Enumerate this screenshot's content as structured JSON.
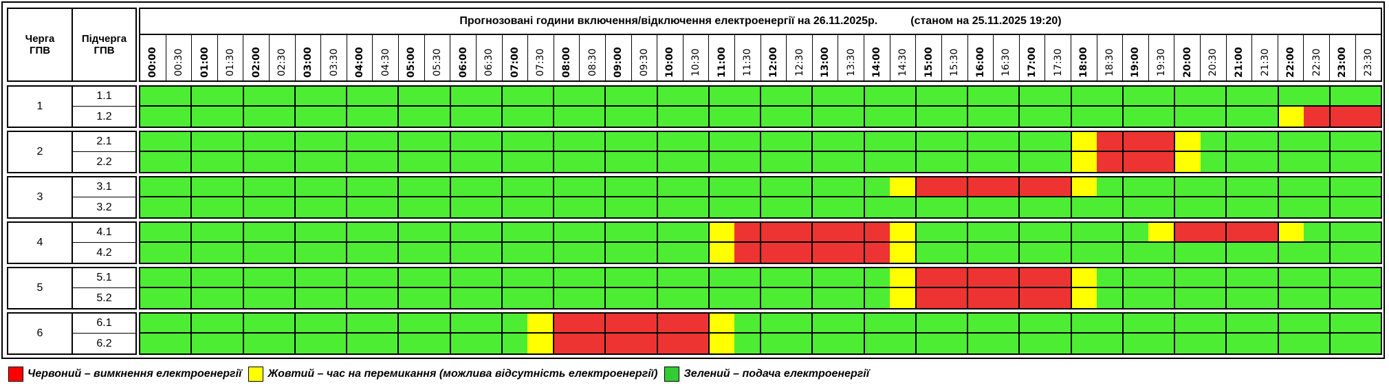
{
  "header": {
    "queue_label": "Черга ГПВ",
    "subqueue_label": "Підчерга ГПВ",
    "title": "Прогнозовані години включення/відключення електроенергії на 26.11.2025р.",
    "status": "(станом на 25.11.2025 19:20)",
    "times": [
      "00:00",
      "00:30",
      "01:00",
      "01:30",
      "02:00",
      "02:30",
      "03:00",
      "03:30",
      "04:00",
      "04:30",
      "05:00",
      "05:30",
      "06:00",
      "06:30",
      "07:00",
      "07:30",
      "08:00",
      "08:30",
      "09:00",
      "09:30",
      "10:00",
      "10:30",
      "11:00",
      "11:30",
      "12:00",
      "12:30",
      "13:00",
      "13:30",
      "14:00",
      "14:30",
      "15:00",
      "15:30",
      "16:00",
      "16:30",
      "17:00",
      "17:30",
      "18:00",
      "18:30",
      "19:00",
      "19:30",
      "20:00",
      "20:30",
      "21:00",
      "21:30",
      "22:00",
      "22:30",
      "23:00",
      "23:30"
    ]
  },
  "colors": {
    "G": "#4ded33",
    "R": "#ee3333",
    "Y": "#ffff00"
  },
  "queues": [
    {
      "label": "1",
      "subs": [
        {
          "label": "1.1",
          "slots": "GGGGGGGG GGGGGGGG GGGGGGGG GGGGGGGG GGGGGGGG GGGGGGGG"
        },
        {
          "label": "1.2",
          "slots": "GGGGGGGG GGGGGGGG GGGGGGGG GGGGGGGG GGGGGGGG GGGGYRRR"
        }
      ]
    },
    {
      "label": "2",
      "subs": [
        {
          "label": "2.1",
          "slots": "GGGGGGGG GGGGGGGG GGGGGGGG GGGGGGGG GGGGYRRR YGGGGGGG"
        },
        {
          "label": "2.2",
          "slots": "GGGGGGGG GGGGGGGG GGGGGGGG GGGGGGGG GGGGYRRR YGGGGGGG"
        }
      ]
    },
    {
      "label": "3",
      "subs": [
        {
          "label": "3.1",
          "slots": "GGGGGGGG GGGGGGGG GGGGGGGG GGGGGYRR RRRRYGGG GGGGGGGG"
        },
        {
          "label": "3.2",
          "slots": "GGGGGGGG GGGGGGGG GGGGGGGG GGGGGGGG GGGGGGGG GGGGGGGG"
        }
      ]
    },
    {
      "label": "4",
      "subs": [
        {
          "label": "4.1",
          "slots": "GGGGGGGG GGGGGGGG GGGGGGYR RRRRRYGG GGGGGGGY RRRRYGGG"
        },
        {
          "label": "4.2",
          "slots": "GGGGGGGG GGGGGGGG GGGGGGYR RRRRRYGG GGGGGGGG GGGGGGGG"
        }
      ]
    },
    {
      "label": "5",
      "subs": [
        {
          "label": "5.1",
          "slots": "GGGGGGGG GGGGGGGG GGGGGGGG GGGGGYRR RRRRYGGG GGGGGGGG"
        },
        {
          "label": "5.2",
          "slots": "GGGGGGGG GGGGGGGG GGGGGGGG GGGGGYRR RRRRYGGG GGGGGGGG"
        }
      ]
    },
    {
      "label": "6",
      "subs": [
        {
          "label": "6.1",
          "slots": "GGGGGGGG GGGGGGGY RRRRRRYG GGGGGGGG GGGGGGGG GGGGGGGG"
        },
        {
          "label": "6.2",
          "slots": "GGGGGGGG GGGGGGGY RRRRRRYG GGGGGGGG GGGGGGGG GGGGGGGG"
        }
      ]
    }
  ],
  "legend": [
    {
      "color": "#ff0000",
      "text": "Червоний – вимкнення електроенергії"
    },
    {
      "color": "#ffff00",
      "text": "Жовтий – час на перемикання (можлива відсутність електроенергії)"
    },
    {
      "color": "#33cc33",
      "text": "Зелений – подача електроенергії"
    }
  ]
}
